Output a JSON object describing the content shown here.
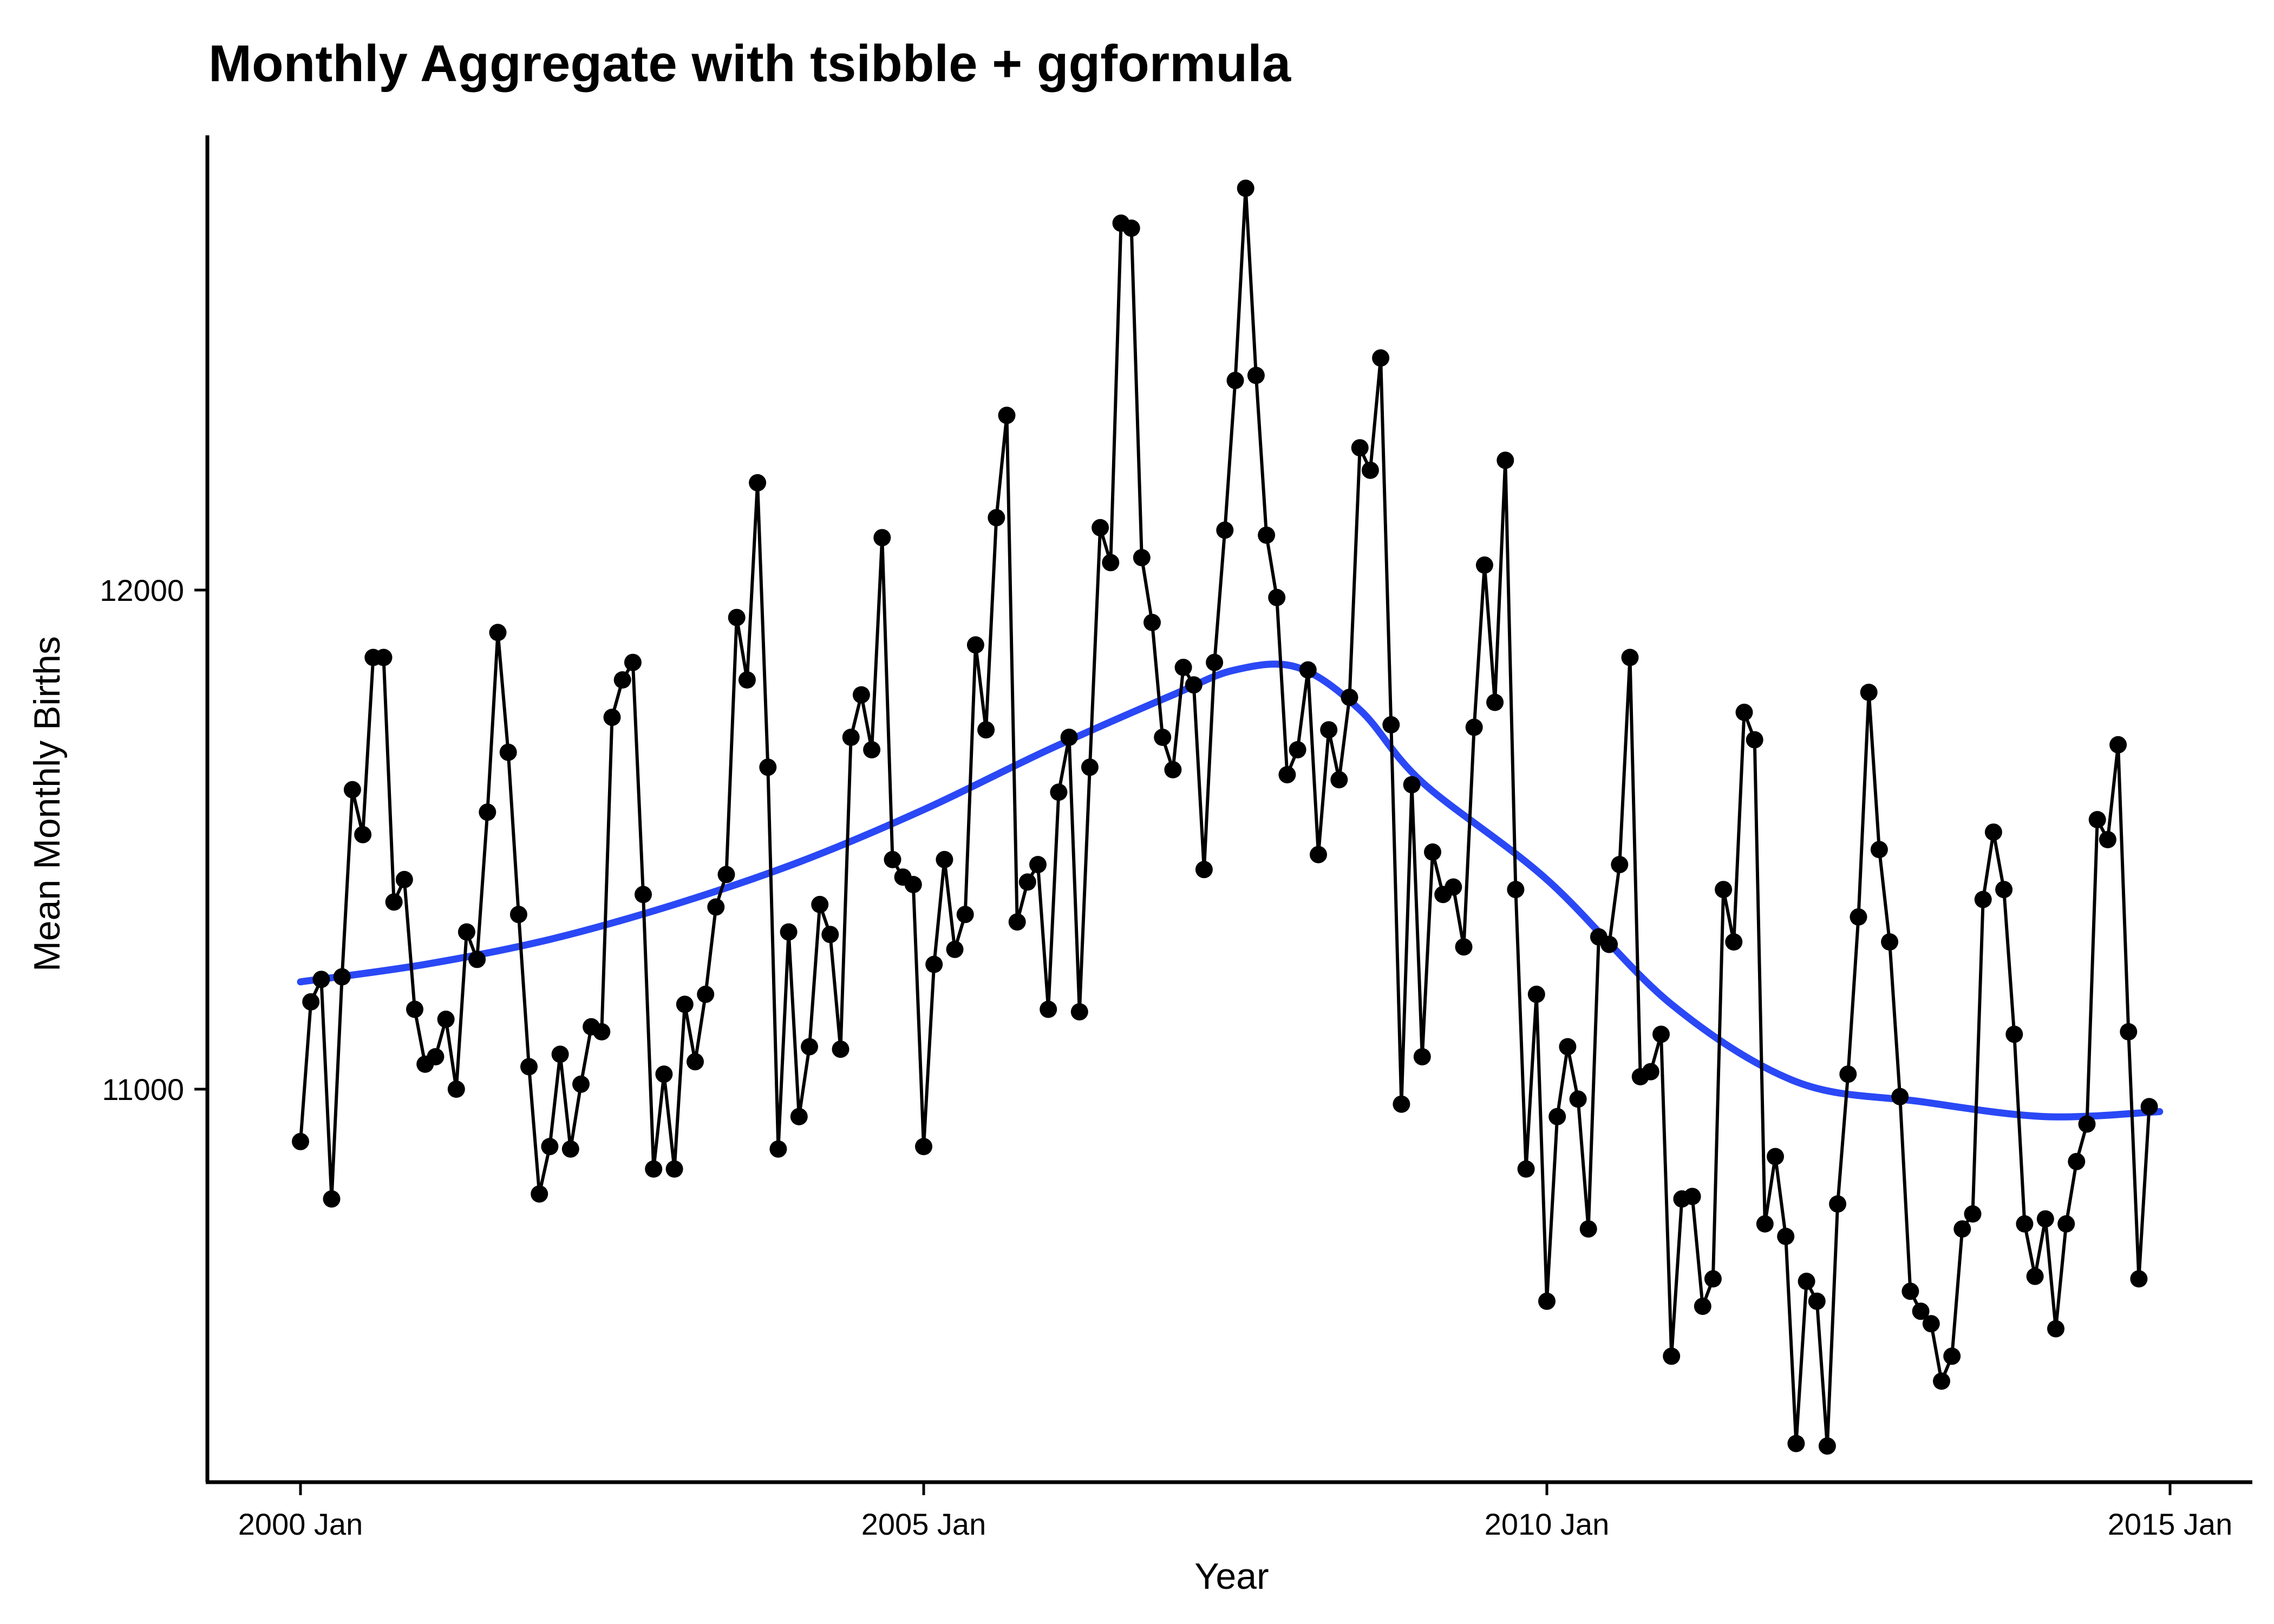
{
  "chart_data": {
    "type": "line",
    "title": "Monthly Aggregate with tsibble + ggformula",
    "xlabel": "Year",
    "ylabel": "Mean Monthly Births",
    "x_ticks": [
      "2000 Jan",
      "2005 Jan",
      "2010 Jan",
      "2015 Jan"
    ],
    "x_start": "2000 Jan",
    "x_end": "2014 Dec",
    "y_ticks": [
      11000,
      12000
    ],
    "ylim": [
      10205,
      12915
    ],
    "grid": false,
    "legend": "none",
    "colors": {
      "series": "#000000",
      "smooth": "#2a48f5"
    },
    "series": [
      {
        "values": [
          10895,
          11175,
          11220,
          10780,
          11225,
          11600,
          11510,
          11865,
          11865,
          11375,
          11420,
          11160,
          11050,
          11065,
          11140,
          11000,
          11315,
          11260,
          11555,
          11915,
          11675,
          11350,
          11045,
          10790,
          10885,
          11070,
          10880,
          11010,
          11125,
          11115,
          11745,
          11820,
          11855,
          11390,
          10840,
          11030,
          10840,
          11170,
          11055,
          11190,
          11365,
          11430,
          11945,
          11820,
          12215,
          11645,
          10880,
          11315,
          10945,
          11085,
          11370,
          11310,
          11080,
          11705,
          11790,
          11680,
          12105,
          11460,
          11425,
          11410,
          10885,
          11250,
          11460,
          11280,
          11350,
          11890,
          11720,
          12145,
          12350,
          11335,
          11415,
          11450,
          11160,
          11595,
          11705,
          11155,
          11645,
          12125,
          12055,
          12735,
          12725,
          12065,
          11935,
          11705,
          11640,
          11845,
          11810,
          11440,
          11855,
          12120,
          12420,
          12805,
          12430,
          12110,
          11985,
          11630,
          11680,
          11840,
          11470,
          11720,
          11620,
          11785,
          12285,
          12240,
          12465,
          11730,
          10970,
          11610,
          11065,
          11475,
          11390,
          11405,
          11285,
          11725,
          12050,
          11775,
          12260,
          11400,
          10840,
          11190,
          10575,
          10945,
          11085,
          10980,
          10720,
          11305,
          11290,
          11450,
          11865,
          11025,
          11035,
          11110,
          10465,
          10780,
          10785,
          10565,
          10620,
          11400,
          11295,
          11755,
          11700,
          10730,
          10865,
          10705,
          10290,
          10615,
          10575,
          10285,
          10770,
          11030,
          11345,
          11795,
          11480,
          11295,
          10985,
          10595,
          10555,
          10530,
          10415,
          10465,
          10720,
          10750,
          11380,
          11515,
          11400,
          11110,
          10730,
          10625,
          10740,
          10520,
          10730,
          10855,
          10930,
          11540,
          11500,
          11690,
          11115,
          10620,
          10965
        ]
      }
    ],
    "smooth": {
      "x_months": [
        0,
        12,
        24,
        36,
        48,
        60,
        72,
        84,
        90,
        96,
        102,
        108,
        120,
        132,
        144,
        156,
        168,
        179
      ],
      "values": [
        11215,
        11250,
        11300,
        11370,
        11455,
        11560,
        11680,
        11790,
        11840,
        11845,
        11760,
        11615,
        11420,
        11170,
        11015,
        10975,
        10945,
        10955
      ]
    }
  }
}
